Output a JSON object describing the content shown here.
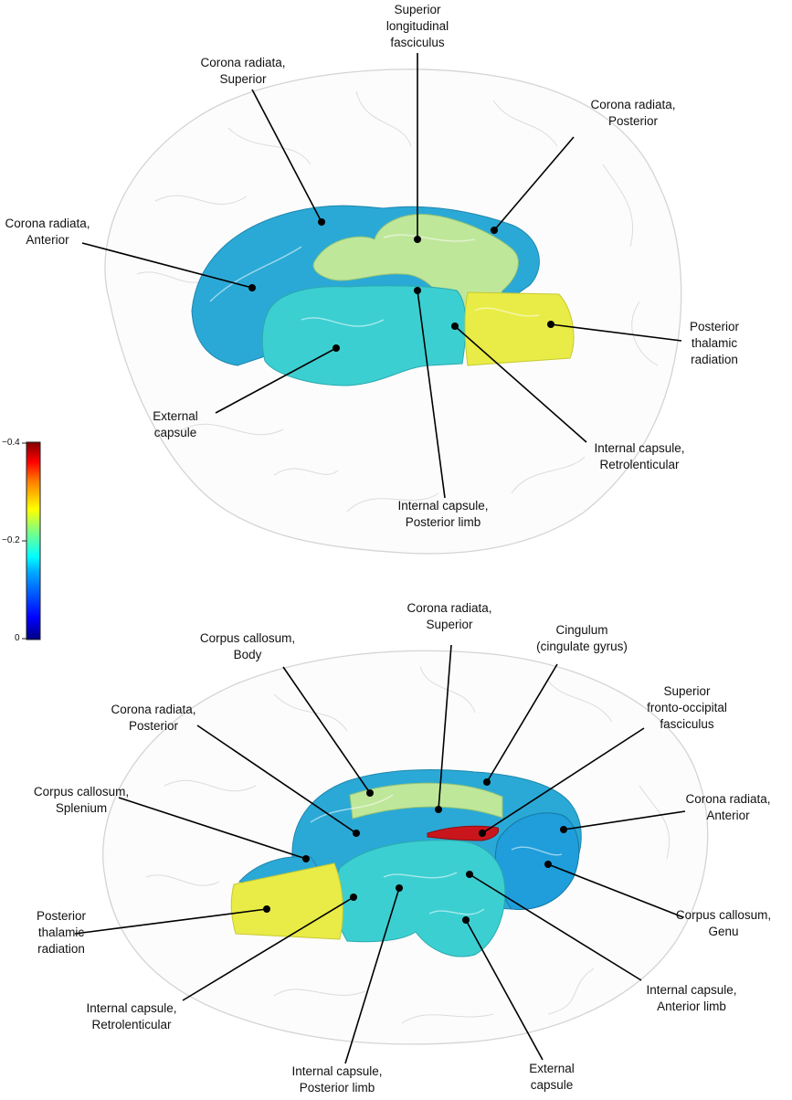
{
  "top_panel": {
    "labels": [
      {
        "id": "slf",
        "lines": [
          "Superior",
          "longitudinal",
          "fasciculus"
        ]
      },
      {
        "id": "crs",
        "lines": [
          "Corona radiata,",
          "Superior"
        ]
      },
      {
        "id": "crp",
        "lines": [
          "Corona radiata,",
          "Posterior"
        ]
      },
      {
        "id": "cra",
        "lines": [
          "Corona radiata,",
          "Anterior"
        ]
      },
      {
        "id": "ptr",
        "lines": [
          "Posterior",
          "thalamic",
          "radiation"
        ]
      },
      {
        "id": "ec",
        "lines": [
          "External",
          "capsule"
        ]
      },
      {
        "id": "icr",
        "lines": [
          "Internal capsule,",
          "Retrolenticular"
        ]
      },
      {
        "id": "icpl",
        "lines": [
          "Internal capsule,",
          "Posterior limb"
        ]
      }
    ]
  },
  "bottom_panel": {
    "labels": [
      {
        "id": "crs",
        "lines": [
          "Corona radiata,",
          "Superior"
        ]
      },
      {
        "id": "cing",
        "lines": [
          "Cingulum",
          "(cingulate gyrus)"
        ]
      },
      {
        "id": "ccb",
        "lines": [
          "Corpus callosum,",
          "Body"
        ]
      },
      {
        "id": "sfof",
        "lines": [
          "Superior",
          "fronto-occipital",
          "fasciculus"
        ]
      },
      {
        "id": "crp",
        "lines": [
          "Corona radiata,",
          "Posterior"
        ]
      },
      {
        "id": "ccs",
        "lines": [
          "Corpus callosum,",
          "Splenium"
        ]
      },
      {
        "id": "cra",
        "lines": [
          "Corona radiata,",
          "Anterior"
        ]
      },
      {
        "id": "ptr",
        "lines": [
          "Posterior",
          "thalamic",
          "radiation"
        ]
      },
      {
        "id": "ccg",
        "lines": [
          "Corpus callosum,",
          "Genu"
        ]
      },
      {
        "id": "ical",
        "lines": [
          "Internal capsule,",
          "Anterior limb"
        ]
      },
      {
        "id": "icr",
        "lines": [
          "Internal capsule,",
          "Retrolenticular"
        ]
      },
      {
        "id": "icpl",
        "lines": [
          "Internal capsule,",
          "Posterior limb"
        ]
      },
      {
        "id": "ec",
        "lines": [
          "External",
          "capsule"
        ]
      }
    ]
  },
  "colorbar": {
    "ticks": [
      "−0.4",
      "−0.2",
      "0"
    ],
    "tick_values": [
      -0.4,
      -0.2,
      0
    ],
    "range": [
      0,
      -0.4
    ],
    "colormap": "jet",
    "colors": [
      "#00007f",
      "#0000ff",
      "#007fff",
      "#00ffff",
      "#7fff7f",
      "#ffff00",
      "#ff7f00",
      "#ff0000",
      "#7f0000"
    ]
  },
  "colors": {
    "outline": "#d2d2d2",
    "leader": "#000000",
    "blue_tract": "#2aa9d6",
    "cyan_tract": "#3ccfd2",
    "green_tract": "#bfe79a",
    "yellow_tract": "#e9ec46",
    "red_tract": "#c8161c"
  }
}
